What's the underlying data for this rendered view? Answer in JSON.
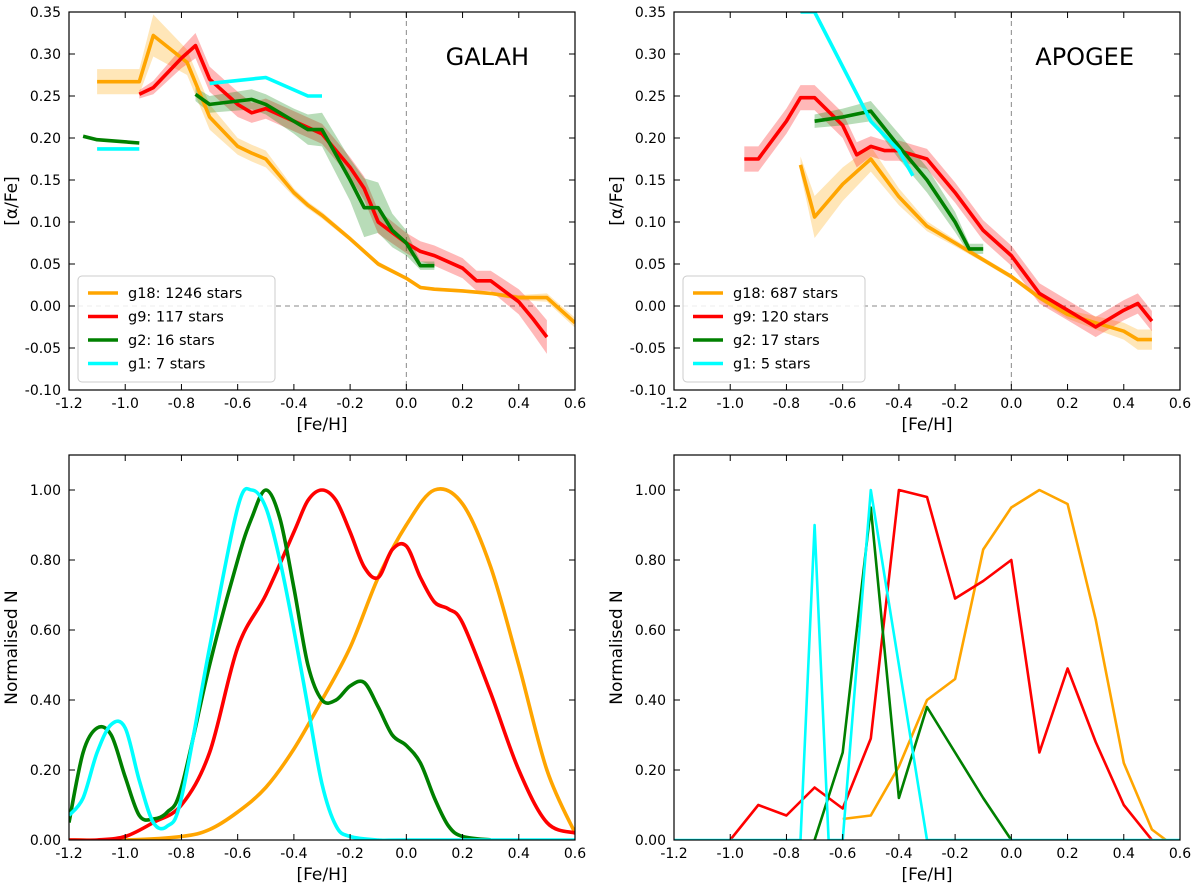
{
  "colors": {
    "g18": "#ffa500",
    "g9": "#ff0000",
    "g2": "#008000",
    "g1": "#00ffff"
  },
  "chart_data": [
    {
      "id": "galah-alpha",
      "type": "line",
      "annotation": "GALAH",
      "xlabel": "[Fe/H]",
      "ylabel": "[α/Fe]",
      "xlim": [
        -1.2,
        0.6
      ],
      "ylim": [
        -0.1,
        0.35
      ],
      "xticks": [
        "-1.2",
        "-1.0",
        "-0.8",
        "-0.6",
        "-0.4",
        "-0.2",
        "0.0",
        "0.2",
        "0.4",
        "0.6"
      ],
      "yticks": [
        "-0.10",
        "-0.05",
        "0.00",
        "0.05",
        "0.10",
        "0.15",
        "0.20",
        "0.25",
        "0.30",
        "0.35"
      ],
      "reference_lines": {
        "x": 0.0,
        "y": 0.0
      },
      "legend_position": "lower-left",
      "series": [
        {
          "name": "g18: 1246 stars",
          "color_key": "g18",
          "band": true,
          "x": [
            -1.1,
            -0.95,
            -0.9,
            -0.78,
            -0.7,
            -0.6,
            -0.55,
            -0.5,
            -0.4,
            -0.35,
            -0.3,
            -0.2,
            -0.1,
            0.0,
            0.05,
            0.1,
            0.2,
            0.3,
            0.4,
            0.5,
            0.6
          ],
          "y": [
            0.267,
            0.267,
            0.322,
            0.29,
            0.225,
            0.19,
            0.182,
            0.175,
            0.135,
            0.12,
            0.108,
            0.08,
            0.05,
            0.033,
            0.022,
            0.02,
            0.018,
            0.015,
            0.01,
            0.01,
            -0.02
          ],
          "err": [
            0.015,
            0.015,
            0.025,
            0.015,
            0.015,
            0.01,
            0.01,
            0.01,
            0.005,
            0.004,
            0.004,
            0.003,
            0.003,
            0.002,
            0.002,
            0.002,
            0.002,
            0.002,
            0.003,
            0.005,
            0.006
          ]
        },
        {
          "name": "g9: 117 stars",
          "color_key": "g9",
          "band": true,
          "x": [
            -0.95,
            -0.9,
            -0.8,
            -0.75,
            -0.7,
            -0.6,
            -0.55,
            -0.5,
            -0.4,
            -0.3,
            -0.2,
            -0.15,
            -0.1,
            0.0,
            0.05,
            0.1,
            0.2,
            0.25,
            0.3,
            0.4,
            0.45,
            0.5
          ],
          "y": [
            0.252,
            0.26,
            0.295,
            0.31,
            0.27,
            0.24,
            0.23,
            0.235,
            0.22,
            0.205,
            0.165,
            0.14,
            0.1,
            0.075,
            0.065,
            0.06,
            0.045,
            0.03,
            0.03,
            0.005,
            -0.015,
            -0.037
          ],
          "err": [
            0.005,
            0.008,
            0.012,
            0.015,
            0.015,
            0.015,
            0.012,
            0.012,
            0.012,
            0.012,
            0.012,
            0.014,
            0.014,
            0.012,
            0.012,
            0.012,
            0.012,
            0.012,
            0.012,
            0.015,
            0.018,
            0.02
          ]
        },
        {
          "name": "g2: 16 stars",
          "color_key": "g2",
          "band": true,
          "x": [
            -0.75,
            -0.7,
            -0.55,
            -0.5,
            -0.4,
            -0.35,
            -0.3,
            -0.2,
            -0.15,
            -0.1,
            -0.05,
            0.0,
            0.05,
            0.1
          ],
          "y": [
            0.252,
            0.24,
            0.246,
            0.24,
            0.22,
            0.21,
            0.21,
            0.15,
            0.117,
            0.117,
            0.09,
            0.075,
            0.048,
            0.048
          ],
          "err": [
            0.008,
            0.01,
            0.012,
            0.012,
            0.015,
            0.018,
            0.02,
            0.025,
            0.035,
            0.03,
            0.02,
            0.015,
            0.005,
            0.005
          ]
        },
        {
          "name": "",
          "color_key": "g2",
          "band": false,
          "x": [
            -1.15,
            -1.1,
            -0.95
          ],
          "y": [
            0.202,
            0.198,
            0.194
          ]
        },
        {
          "name": "g1: 7 stars",
          "color_key": "g1",
          "band": false,
          "x": [
            -0.7,
            -0.5,
            -0.35,
            -0.3
          ],
          "y": [
            0.265,
            0.272,
            0.25,
            0.25
          ]
        },
        {
          "name": "",
          "color_key": "g1",
          "band": false,
          "x": [
            -1.1,
            -0.95
          ],
          "y": [
            0.187,
            0.187
          ]
        }
      ]
    },
    {
      "id": "apogee-alpha",
      "type": "line",
      "annotation": "APOGEE",
      "xlabel": "[Fe/H]",
      "ylabel": "[α/Fe]",
      "xlim": [
        -1.2,
        0.6
      ],
      "ylim": [
        -0.1,
        0.35
      ],
      "xticks": [
        "-1.2",
        "-1.0",
        "-0.8",
        "-0.6",
        "-0.4",
        "-0.2",
        "0.0",
        "0.2",
        "0.4",
        "0.6"
      ],
      "yticks": [
        "-0.10",
        "-0.05",
        "0.00",
        "0.05",
        "0.10",
        "0.15",
        "0.20",
        "0.25",
        "0.30",
        "0.35"
      ],
      "reference_lines": {
        "x": 0.0,
        "y": 0.0
      },
      "legend_position": "lower-left",
      "series": [
        {
          "name": "g18: 687 stars",
          "color_key": "g18",
          "band": true,
          "x": [
            -0.75,
            -0.7,
            -0.6,
            -0.5,
            -0.4,
            -0.3,
            -0.2,
            -0.1,
            0.0,
            0.1,
            0.2,
            0.3,
            0.4,
            0.45,
            0.5
          ],
          "y": [
            0.168,
            0.106,
            0.145,
            0.175,
            0.13,
            0.095,
            0.075,
            0.055,
            0.035,
            0.01,
            -0.01,
            -0.02,
            -0.03,
            -0.04,
            -0.04
          ],
          "err": [
            0.01,
            0.025,
            0.02,
            0.015,
            0.01,
            0.006,
            0.004,
            0.003,
            0.003,
            0.003,
            0.005,
            0.008,
            0.01,
            0.012,
            0.012
          ]
        },
        {
          "name": "g9: 120 stars",
          "color_key": "g9",
          "band": true,
          "x": [
            -0.95,
            -0.9,
            -0.8,
            -0.75,
            -0.7,
            -0.6,
            -0.55,
            -0.5,
            -0.45,
            -0.4,
            -0.35,
            -0.3,
            -0.2,
            -0.1,
            0.0,
            0.1,
            0.2,
            0.3,
            0.4,
            0.45,
            0.5
          ],
          "y": [
            0.175,
            0.175,
            0.22,
            0.248,
            0.248,
            0.215,
            0.18,
            0.19,
            0.185,
            0.185,
            0.18,
            0.175,
            0.135,
            0.09,
            0.06,
            0.015,
            -0.005,
            -0.025,
            -0.005,
            0.003,
            -0.018
          ],
          "err": [
            0.015,
            0.015,
            0.015,
            0.015,
            0.015,
            0.015,
            0.015,
            0.012,
            0.012,
            0.012,
            0.012,
            0.012,
            0.012,
            0.012,
            0.012,
            0.012,
            0.012,
            0.012,
            0.012,
            0.012,
            0.012
          ]
        },
        {
          "name": "g2: 17 stars",
          "color_key": "g2",
          "band": true,
          "x": [
            -0.7,
            -0.6,
            -0.5,
            -0.4,
            -0.3,
            -0.2,
            -0.15,
            -0.1
          ],
          "y": [
            0.22,
            0.225,
            0.232,
            0.19,
            0.15,
            0.1,
            0.068,
            0.068
          ],
          "err": [
            0.008,
            0.01,
            0.012,
            0.015,
            0.015,
            0.012,
            0.006,
            0.006
          ]
        },
        {
          "name": "g1: 5 stars",
          "color_key": "g1",
          "band": false,
          "x": [
            -0.75,
            -0.7,
            -0.5,
            -0.4,
            -0.35
          ],
          "y": [
            0.35,
            0.35,
            0.22,
            0.185,
            0.155
          ]
        }
      ]
    },
    {
      "id": "galah-mdf",
      "type": "line",
      "xlabel": "[Fe/H]",
      "ylabel": "Normalised N",
      "xlim": [
        -1.2,
        0.6
      ],
      "ylim": [
        0.0,
        1.1
      ],
      "xticks": [
        "-1.2",
        "-1.0",
        "-0.8",
        "-0.6",
        "-0.4",
        "-0.2",
        "0.0",
        "0.2",
        "0.4",
        "0.6"
      ],
      "yticks": [
        "0.00",
        "0.20",
        "0.40",
        "0.60",
        "0.80",
        "1.00"
      ],
      "smooth": true,
      "series": [
        {
          "color_key": "g18",
          "x": [
            -1.2,
            -1.0,
            -0.8,
            -0.7,
            -0.6,
            -0.5,
            -0.4,
            -0.3,
            -0.2,
            -0.1,
            0.0,
            0.1,
            0.2,
            0.3,
            0.4,
            0.5,
            0.6
          ],
          "y": [
            0.0,
            0.0,
            0.01,
            0.03,
            0.08,
            0.15,
            0.26,
            0.4,
            0.55,
            0.75,
            0.9,
            1.0,
            0.96,
            0.78,
            0.5,
            0.2,
            0.02
          ]
        },
        {
          "color_key": "g9",
          "x": [
            -1.2,
            -1.1,
            -1.0,
            -0.9,
            -0.8,
            -0.7,
            -0.6,
            -0.5,
            -0.4,
            -0.35,
            -0.3,
            -0.25,
            -0.2,
            -0.15,
            -0.1,
            -0.05,
            0.0,
            0.05,
            0.1,
            0.15,
            0.2,
            0.3,
            0.4,
            0.5,
            0.6
          ],
          "y": [
            0.0,
            0.0,
            0.01,
            0.05,
            0.1,
            0.25,
            0.55,
            0.7,
            0.88,
            0.97,
            1.0,
            0.97,
            0.88,
            0.78,
            0.75,
            0.83,
            0.84,
            0.75,
            0.68,
            0.66,
            0.62,
            0.42,
            0.2,
            0.05,
            0.02
          ]
        },
        {
          "color_key": "g2",
          "x": [
            -1.2,
            -1.15,
            -1.1,
            -1.05,
            -1.0,
            -0.95,
            -0.9,
            -0.85,
            -0.8,
            -0.7,
            -0.6,
            -0.55,
            -0.5,
            -0.45,
            -0.4,
            -0.35,
            -0.3,
            -0.25,
            -0.2,
            -0.15,
            -0.1,
            -0.05,
            0.0,
            0.05,
            0.1,
            0.15,
            0.2,
            0.3
          ],
          "y": [
            0.05,
            0.25,
            0.32,
            0.3,
            0.18,
            0.07,
            0.06,
            0.08,
            0.15,
            0.5,
            0.8,
            0.92,
            1.0,
            0.92,
            0.72,
            0.5,
            0.4,
            0.4,
            0.44,
            0.45,
            0.38,
            0.3,
            0.27,
            0.22,
            0.12,
            0.04,
            0.01,
            0.0
          ]
        },
        {
          "color_key": "g1",
          "x": [
            -1.2,
            -1.15,
            -1.1,
            -1.05,
            -1.0,
            -0.95,
            -0.9,
            -0.85,
            -0.8,
            -0.7,
            -0.6,
            -0.55,
            -0.5,
            -0.45,
            -0.4,
            -0.35,
            -0.3,
            -0.25,
            -0.2,
            -0.1,
            0.0,
            0.6
          ],
          "y": [
            0.07,
            0.12,
            0.25,
            0.33,
            0.32,
            0.17,
            0.05,
            0.04,
            0.12,
            0.55,
            0.95,
            1.0,
            0.95,
            0.8,
            0.6,
            0.38,
            0.16,
            0.04,
            0.01,
            0.0,
            0.0,
            0.0
          ]
        }
      ]
    },
    {
      "id": "apogee-mdf",
      "type": "line",
      "xlabel": "[Fe/H]",
      "ylabel": "Normalised N",
      "xlim": [
        -1.2,
        0.6
      ],
      "ylim": [
        0.0,
        1.1
      ],
      "xticks": [
        "-1.2",
        "-1.0",
        "-0.8",
        "-0.6",
        "-0.4",
        "-0.2",
        "0.0",
        "0.2",
        "0.4",
        "0.6"
      ],
      "yticks": [
        "0.00",
        "0.20",
        "0.40",
        "0.60",
        "0.80",
        "1.00"
      ],
      "smooth": false,
      "series": [
        {
          "color_key": "g18",
          "x": [
            -0.6,
            -0.5,
            -0.4,
            -0.3,
            -0.2,
            -0.1,
            0.0,
            0.1,
            0.2,
            0.3,
            0.4,
            0.5,
            0.55
          ],
          "y": [
            0.06,
            0.07,
            0.21,
            0.4,
            0.46,
            0.83,
            0.95,
            1.0,
            0.96,
            0.63,
            0.22,
            0.03,
            0.0
          ]
        },
        {
          "color_key": "g9",
          "x": [
            -1.0,
            -0.9,
            -0.8,
            -0.7,
            -0.6,
            -0.5,
            -0.4,
            -0.3,
            -0.2,
            -0.1,
            0.0,
            0.1,
            0.2,
            0.3,
            0.4,
            0.5
          ],
          "y": [
            0.0,
            0.1,
            0.07,
            0.15,
            0.09,
            0.29,
            1.0,
            0.98,
            0.69,
            0.74,
            0.8,
            0.25,
            0.49,
            0.28,
            0.1,
            0.0
          ]
        },
        {
          "color_key": "g2",
          "x": [
            -0.7,
            -0.6,
            -0.5,
            -0.4,
            -0.3,
            -0.2,
            -0.1,
            0.0
          ],
          "y": [
            0.0,
            0.25,
            0.95,
            0.12,
            0.38,
            0.25,
            0.12,
            0.0
          ]
        },
        {
          "color_key": "g1",
          "x": [
            -1.2,
            -0.75,
            -0.7,
            -0.65,
            -0.6,
            -0.55,
            -0.5,
            -0.45,
            -0.4,
            -0.35,
            -0.3,
            0.6
          ],
          "y": [
            0.0,
            0.0,
            0.9,
            0.0,
            0.0,
            0.5,
            1.0,
            0.75,
            0.5,
            0.25,
            0.0,
            0.0
          ]
        }
      ]
    }
  ]
}
